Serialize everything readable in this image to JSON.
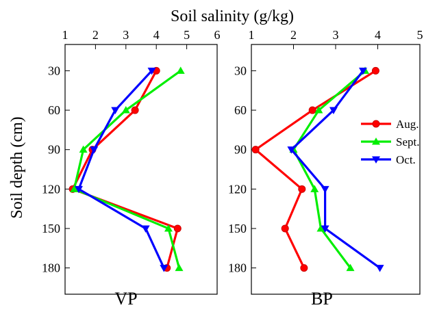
{
  "chart_data": {
    "type": "line",
    "title": "",
    "xlabel": "Soil salinity (g/kg)",
    "ylabel": "Soil depth (cm)",
    "y_ticks": [
      30,
      60,
      90,
      120,
      150,
      180
    ],
    "ylim": [
      10,
      200
    ],
    "legend_position": "right-middle of BP panel",
    "legend": [
      "Aug.",
      "Sept.",
      "Oct."
    ],
    "colors": {
      "Aug.": "#ff0000",
      "Sept.": "#00ee00",
      "Oct.": "#0000ff"
    },
    "markers": {
      "Aug.": "circle",
      "Sept.": "triangle-up",
      "Oct.": "triangle-down"
    },
    "panels": [
      {
        "name": "VP",
        "xlim": [
          1,
          6
        ],
        "x_ticks": [
          1,
          2,
          3,
          4,
          5,
          6
        ],
        "series": [
          {
            "name": "Aug.",
            "depth": [
              30,
              60,
              90,
              120,
              150,
              180
            ],
            "values": [
              4.0,
              3.3,
              1.9,
              1.25,
              4.7,
              4.35
            ]
          },
          {
            "name": "Sept.",
            "depth": [
              30,
              60,
              90,
              120,
              150,
              180
            ],
            "values": [
              4.8,
              3.0,
              1.6,
              1.3,
              4.4,
              4.75
            ]
          },
          {
            "name": "Oct.",
            "depth": [
              30,
              60,
              90,
              120,
              150,
              180
            ],
            "values": [
              3.85,
              2.65,
              1.95,
              1.45,
              3.65,
              4.25
            ]
          }
        ]
      },
      {
        "name": "BP",
        "xlim": [
          1,
          5
        ],
        "x_ticks": [
          1,
          2,
          3,
          4,
          5
        ],
        "series": [
          {
            "name": "Aug.",
            "depth": [
              30,
              60,
              90,
              120,
              150,
              180
            ],
            "values": [
              3.95,
              2.45,
              1.1,
              2.2,
              1.8,
              2.25
            ]
          },
          {
            "name": "Sept.",
            "depth": [
              30,
              60,
              90,
              120,
              150,
              180
            ],
            "values": [
              3.7,
              2.6,
              2.0,
              2.5,
              2.65,
              3.35
            ]
          },
          {
            "name": "Oct.",
            "depth": [
              30,
              60,
              90,
              120,
              150,
              180
            ],
            "values": [
              3.65,
              2.95,
              1.95,
              2.75,
              2.75,
              4.05
            ]
          }
        ]
      }
    ]
  }
}
